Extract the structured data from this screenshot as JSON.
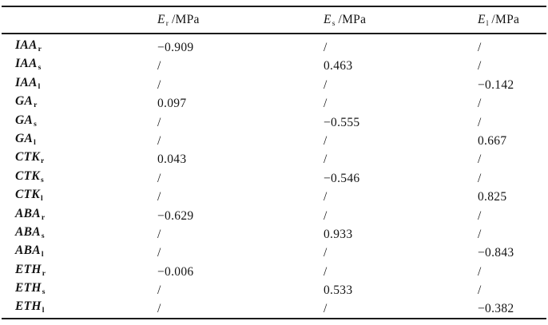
{
  "table": {
    "columns": [
      {
        "base": "E",
        "sub": "r",
        "unit": "/MPa"
      },
      {
        "base": "E",
        "sub": "s",
        "unit": "/MPa"
      },
      {
        "base": "E",
        "sub": "l",
        "unit": "/MPa"
      }
    ],
    "rows": [
      {
        "base": "IAA",
        "sub": "r",
        "values": [
          "−0.909",
          "/",
          "/"
        ]
      },
      {
        "base": "IAA",
        "sub": "s",
        "values": [
          "/",
          "0.463",
          "/"
        ]
      },
      {
        "base": "IAA",
        "sub": "l",
        "values": [
          "/",
          "/",
          "−0.142"
        ]
      },
      {
        "base": "GA",
        "sub": "r",
        "values": [
          "0.097",
          "/",
          "/"
        ]
      },
      {
        "base": "GA",
        "sub": "s",
        "values": [
          "/",
          "−0.555",
          "/"
        ]
      },
      {
        "base": "GA",
        "sub": "l",
        "values": [
          "/",
          "/",
          "0.667"
        ]
      },
      {
        "base": "CTK",
        "sub": "r",
        "values": [
          "0.043",
          "/",
          "/"
        ]
      },
      {
        "base": "CTK",
        "sub": "s",
        "values": [
          "/",
          "−0.546",
          "/"
        ]
      },
      {
        "base": "CTK",
        "sub": "l",
        "values": [
          "/",
          "/",
          "0.825"
        ]
      },
      {
        "base": "ABA",
        "sub": "r",
        "values": [
          "−0.629",
          "/",
          "/"
        ]
      },
      {
        "base": "ABA",
        "sub": "s",
        "values": [
          "/",
          "0.933",
          "/"
        ]
      },
      {
        "base": "ABA",
        "sub": "l",
        "values": [
          "/",
          "/",
          "−0.843"
        ]
      },
      {
        "base": "ETH",
        "sub": "r",
        "values": [
          "−0.006",
          "/",
          "/"
        ]
      },
      {
        "base": "ETH",
        "sub": "s",
        "values": [
          "/",
          "0.533",
          "/"
        ]
      },
      {
        "base": "ETH",
        "sub": "l",
        "values": [
          "/",
          "/",
          "−0.382"
        ]
      }
    ],
    "colors": {
      "text": "#141414",
      "rule": "#1c1c1c",
      "background": "#ffffff"
    }
  }
}
